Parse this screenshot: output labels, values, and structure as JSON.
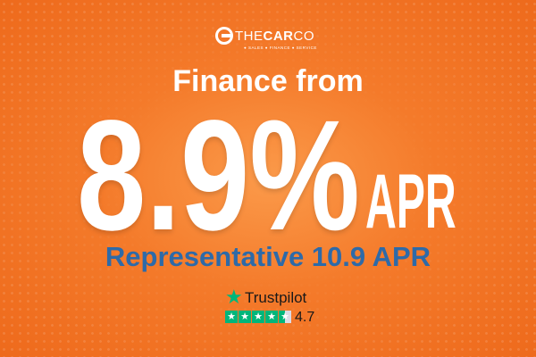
{
  "brand": {
    "name_thin": "THE",
    "name_bold": "CAR",
    "name_end": "CO",
    "tagline": "● SALES ● FINANCE ● SERVICE"
  },
  "headline": "Finance from",
  "rate": "8.9%",
  "rate_suffix": "APR",
  "representative": "Representative 10.9 APR",
  "trustpilot": {
    "name": "Trustpilot",
    "score": "4.7",
    "rating": 4.5,
    "color": "#00b67a"
  },
  "colors": {
    "background": "#f47a2a",
    "accent_blue": "#2e6aa8"
  }
}
